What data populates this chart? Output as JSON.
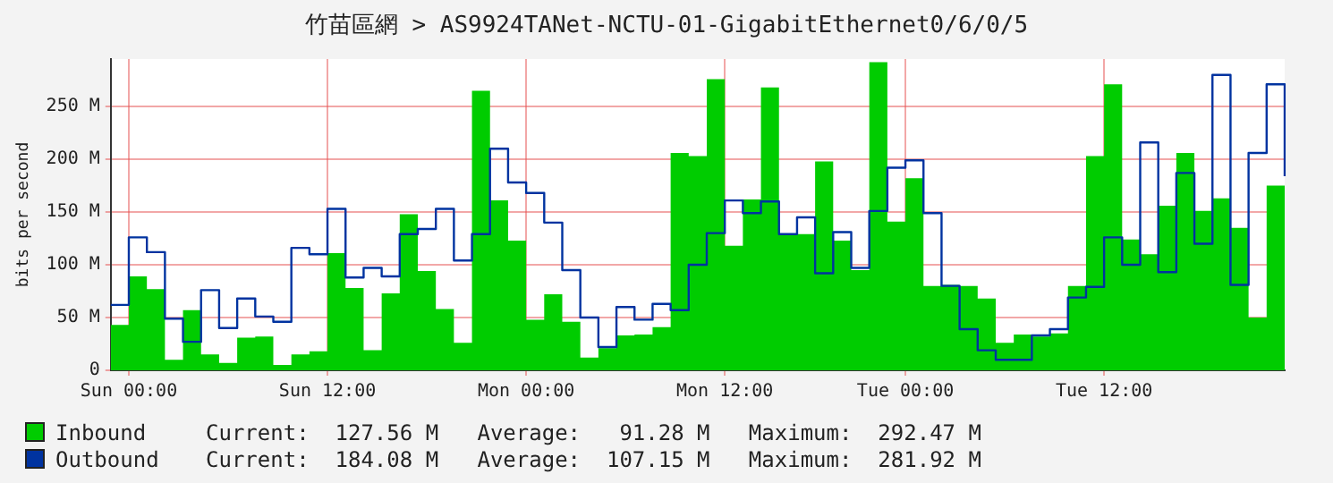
{
  "chart_data": {
    "type": "area",
    "title": "竹苗區網 > AS9924TANet-NCTU-01-GigabitEthernet0/6/0/5",
    "ylabel": "bits per second",
    "categories": [
      null,
      "Sun 00:00",
      null,
      null,
      null,
      null,
      null,
      null,
      null,
      null,
      null,
      null,
      "Sun 12:00",
      null,
      null,
      null,
      null,
      null,
      null,
      null,
      null,
      null,
      null,
      "Mon 00:00",
      null,
      null,
      null,
      null,
      null,
      null,
      null,
      null,
      null,
      null,
      "Mon 12:00",
      null,
      null,
      null,
      null,
      null,
      null,
      null,
      null,
      null,
      "Tue 00:00",
      null,
      null,
      null,
      null,
      null,
      null,
      null,
      null,
      null,
      null,
      "Tue 12:00",
      null,
      null,
      null,
      null,
      null,
      null,
      null,
      null,
      null,
      null
    ],
    "series": [
      {
        "name": "Inbound",
        "type": "area",
        "color": "#00cc00",
        "values": [
          43,
          89,
          77,
          10,
          57,
          15,
          7,
          31,
          32,
          5,
          15,
          18,
          111,
          78,
          19,
          73,
          148,
          94,
          58,
          26,
          265,
          161,
          123,
          48,
          72,
          46,
          12,
          21,
          33,
          34,
          41,
          206,
          203,
          276,
          118,
          162,
          268,
          129,
          129,
          198,
          123,
          95,
          292,
          141,
          182,
          80,
          81,
          80,
          68,
          26,
          34,
          32,
          35,
          80,
          203,
          271,
          124,
          110,
          156,
          206,
          151,
          163,
          135,
          50,
          175,
          127
        ]
      },
      {
        "name": "Outbound",
        "type": "step",
        "color": "#0033a0",
        "values": [
          62,
          126,
          112,
          49,
          27,
          76,
          40,
          68,
          51,
          46,
          116,
          110,
          153,
          88,
          97,
          89,
          129,
          134,
          153,
          104,
          129,
          210,
          178,
          168,
          140,
          95,
          50,
          22,
          60,
          48,
          63,
          57,
          100,
          130,
          161,
          149,
          160,
          129,
          145,
          92,
          131,
          97,
          151,
          192,
          199,
          149,
          80,
          39,
          19,
          10,
          10,
          33,
          39,
          69,
          79,
          126,
          100,
          216,
          93,
          187,
          120,
          280,
          81,
          206,
          271,
          184
        ]
      }
    ],
    "ylim": [
      0,
      295
    ],
    "yticks": [
      0,
      {
        "value": 50,
        "label": "50 M"
      },
      {
        "value": 100,
        "label": "100 M"
      },
      {
        "value": 150,
        "label": "150 M"
      },
      {
        "value": 200,
        "label": "200 M"
      },
      {
        "value": 250,
        "label": "250 M"
      }
    ],
    "grid": true,
    "legend": "bottom",
    "annotations": [
      "Current:  127.56 M   Average:   91.28 M   Maximum:  292.47 M",
      "Current:  184.08 M   Average:  107.15 M   Maximum:  281.92 M"
    ]
  }
}
